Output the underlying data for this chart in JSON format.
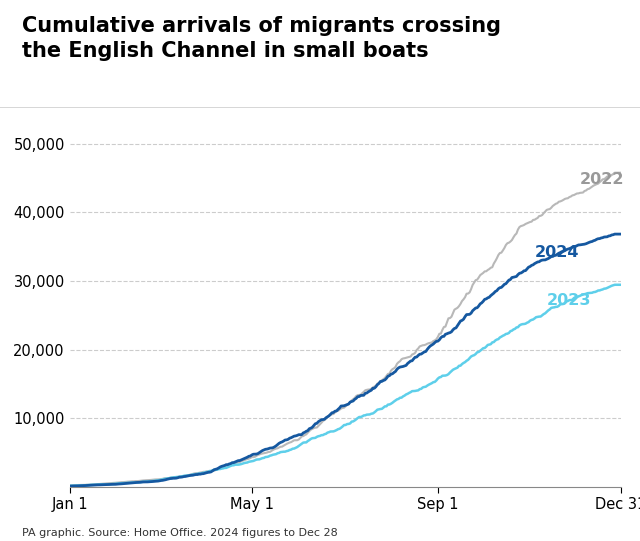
{
  "title": "Cumulative arrivals of migrants crossing\nthe English Channel in small boats",
  "footnote": "PA graphic. Source: Home Office. 2024 figures to Dec 28",
  "bg_color": "#ffffff",
  "grid_color": "#cccccc",
  "title_fontsize": 15,
  "tick_label_fontsize": 10.5,
  "series": {
    "2022": {
      "color": "#b8b8b8",
      "label_color": "#999999",
      "month_days": [
        1,
        32,
        60,
        91,
        121,
        152,
        182,
        213,
        244,
        274,
        305,
        335,
        362
      ],
      "cum": [
        200,
        600,
        1100,
        2200,
        4200,
        6800,
        11500,
        16500,
        21500,
        31000,
        38500,
        42500,
        45755
      ]
    },
    "2023": {
      "color": "#5ecfea",
      "label_color": "#5ecfea",
      "month_days": [
        1,
        32,
        60,
        91,
        121,
        152,
        182,
        213,
        244,
        274,
        305,
        335,
        362
      ],
      "cum": [
        150,
        450,
        950,
        2100,
        3700,
        5800,
        8800,
        12000,
        15500,
        20000,
        24000,
        27500,
        29437
      ]
    },
    "2024": {
      "color": "#1558a0",
      "label_color": "#1558a0",
      "month_days": [
        1,
        32,
        60,
        91,
        121,
        152,
        182,
        213,
        244,
        274,
        305,
        335,
        362
      ],
      "cum": [
        100,
        380,
        850,
        2000,
        4500,
        7500,
        11800,
        16200,
        21200,
        26800,
        32000,
        35000,
        36816
      ]
    }
  },
  "yticks": [
    10000,
    20000,
    30000,
    40000,
    50000
  ],
  "ylim": [
    0,
    52000
  ],
  "xlim": [
    1,
    365
  ],
  "xtick_labels": [
    "Jan 1",
    "May 1",
    "Sep 1",
    "Dec 31"
  ],
  "xtick_positions": [
    1,
    121,
    244,
    365
  ],
  "label_positions": {
    "2022": [
      338,
      44800
    ],
    "2024": [
      308,
      34200
    ],
    "2023": [
      316,
      27200
    ]
  }
}
